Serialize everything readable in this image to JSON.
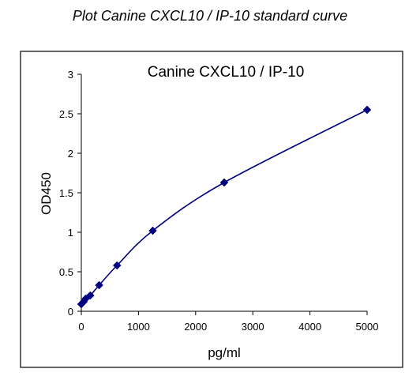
{
  "caption": "Plot Canine CXCL10 / IP-10 standard curve",
  "chart_data": {
    "type": "scatter",
    "title": "Canine CXCL10 / IP-10",
    "xlabel": "pg/ml",
    "ylabel": "OD450",
    "xlim": [
      0,
      5000
    ],
    "ylim": [
      0,
      3
    ],
    "x_ticks": [
      0,
      1000,
      2000,
      3000,
      4000,
      5000
    ],
    "y_ticks": [
      0,
      0.5,
      1,
      1.5,
      2,
      2.5,
      3
    ],
    "x_tick_labels": [
      "0",
      "1000",
      "2000",
      "3000",
      "4000",
      "5000"
    ],
    "y_tick_labels": [
      "0",
      "0.5",
      "1",
      "1.5",
      "2",
      "2.5",
      "3"
    ],
    "grid": false,
    "legend": "none",
    "marker": "diamond",
    "series": [
      {
        "x": [
          0,
          39,
          78,
          156,
          312,
          625,
          1250,
          2500,
          5000
        ],
        "y": [
          0.09,
          0.12,
          0.16,
          0.2,
          0.33,
          0.58,
          1.02,
          1.63,
          2.55
        ],
        "fit": "smooth-curve"
      }
    ],
    "colors": {
      "points": "#000080",
      "line": "#000080",
      "axes": "#000000",
      "frame": "#000000"
    }
  }
}
